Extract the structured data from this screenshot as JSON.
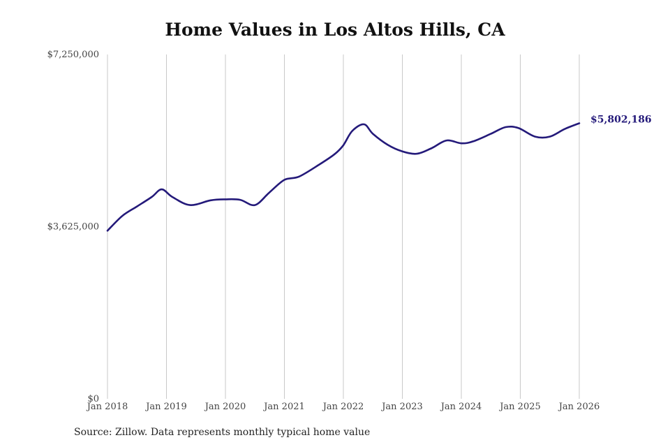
{
  "chart_data": {
    "type": "line",
    "title": "Home Values in Los Altos Hills, CA",
    "xlabel": "",
    "ylabel": "",
    "ylim": [
      0,
      7250000
    ],
    "yticks": [
      {
        "value": 0,
        "label": "$0"
      },
      {
        "value": 3625000,
        "label": "$3,625,000"
      },
      {
        "value": 7250000,
        "label": "$7,250,000"
      }
    ],
    "xticks": [
      {
        "x": 2018,
        "label": "Jan 2018"
      },
      {
        "x": 2019,
        "label": "Jan 2019"
      },
      {
        "x": 2020,
        "label": "Jan 2020"
      },
      {
        "x": 2021,
        "label": "Jan 2021"
      },
      {
        "x": 2022,
        "label": "Jan 2022"
      },
      {
        "x": 2023,
        "label": "Jan 2023"
      },
      {
        "x": 2024,
        "label": "Jan 2024"
      },
      {
        "x": 2025,
        "label": "Jan 2025"
      },
      {
        "x": 2026,
        "label": "Jan 2026"
      }
    ],
    "xlim": [
      2018,
      2026
    ],
    "grid": "vertical",
    "series": [
      {
        "color": "#241a7a",
        "x": [
          2018.0,
          2018.25,
          2018.5,
          2018.75,
          2018.92,
          2019.1,
          2019.4,
          2019.75,
          2020.0,
          2020.25,
          2020.5,
          2020.75,
          2021.0,
          2021.25,
          2021.6,
          2021.85,
          2022.0,
          2022.15,
          2022.35,
          2022.5,
          2022.75,
          2023.0,
          2023.25,
          2023.5,
          2023.75,
          2024.0,
          2024.2,
          2024.5,
          2024.75,
          2024.97,
          2025.25,
          2025.5,
          2025.75,
          2026.0
        ],
        "y": [
          3540000,
          3850000,
          4050000,
          4250000,
          4410000,
          4250000,
          4080000,
          4180000,
          4200000,
          4190000,
          4080000,
          4350000,
          4610000,
          4680000,
          4940000,
          5150000,
          5340000,
          5640000,
          5780000,
          5580000,
          5350000,
          5210000,
          5160000,
          5280000,
          5440000,
          5380000,
          5420000,
          5580000,
          5720000,
          5700000,
          5520000,
          5520000,
          5680000,
          5802186
        ]
      }
    ],
    "end_label": "$5,802,186",
    "source": "Source: Zillow. Data represents monthly typical home value"
  }
}
